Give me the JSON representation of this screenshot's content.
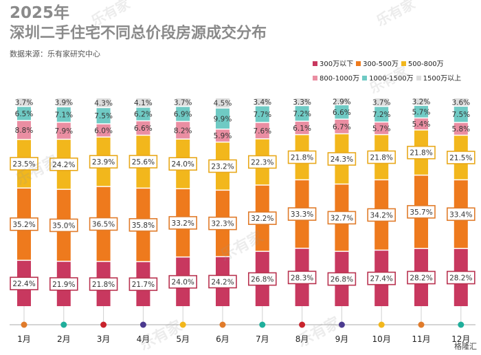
{
  "title_year": "2025年",
  "title": "深圳二手住宅不同总价段房源成交分布",
  "source": "数据来源：乐有家研究中心",
  "watermark": "乐有家",
  "logo_text": "格隆汇",
  "chart_data": {
    "type": "bar",
    "stacked": true,
    "categories": [
      "1月",
      "2月",
      "3月",
      "4月",
      "5月",
      "6月",
      "7月",
      "8月",
      "9月",
      "10月",
      "11月",
      "12月"
    ],
    "series": [
      {
        "name": "300万以下",
        "color": "#c8385f",
        "values": [
          22.4,
          21.9,
          21.8,
          21.7,
          24.0,
          24.2,
          26.8,
          28.3,
          26.8,
          27.4,
          28.2,
          28.2
        ]
      },
      {
        "name": "300-500万",
        "color": "#ee7a1d",
        "values": [
          35.2,
          35.0,
          36.5,
          35.8,
          33.2,
          32.3,
          32.2,
          33.3,
          32.7,
          34.2,
          35.7,
          33.4
        ]
      },
      {
        "name": "500-800万",
        "color": "#f2b71c",
        "values": [
          23.5,
          24.2,
          23.9,
          25.6,
          24.0,
          23.2,
          22.3,
          21.8,
          24.3,
          21.8,
          21.8,
          21.5
        ]
      },
      {
        "name": "800-1000万",
        "color": "#ea8ea2",
        "values": [
          8.8,
          7.9,
          6.0,
          6.6,
          8.2,
          5.9,
          7.6,
          6.1,
          6.7,
          5.7,
          5.4,
          5.8
        ]
      },
      {
        "name": "1000-1500万",
        "color": "#6fcac4",
        "values": [
          6.5,
          7.1,
          7.5,
          6.2,
          6.9,
          9.9,
          7.7,
          7.2,
          6.6,
          7.2,
          5.7,
          7.5
        ]
      },
      {
        "name": "1500万以上",
        "color": "#dddddd",
        "values": [
          3.7,
          3.9,
          4.3,
          4.1,
          3.7,
          4.5,
          3.4,
          3.3,
          2.9,
          3.7,
          3.2,
          3.6
        ]
      }
    ],
    "value_suffix": "%",
    "ylim": [
      0,
      100
    ],
    "legend_position": "top-right",
    "month_dot_colors": [
      "#e07b2a",
      "#1fae9b",
      "#c8232c",
      "#4b3a8f",
      "#f2b71c",
      "#e07b2a",
      "#1fae9b",
      "#c8232c",
      "#4b3a8f",
      "#f2b71c",
      "#e07b2a",
      "#1fae9b"
    ],
    "label_box_colors": {
      "300万以下": "#b8324f",
      "300-500万": "#e07b2a",
      "500-800万": "#e8a81a"
    }
  }
}
